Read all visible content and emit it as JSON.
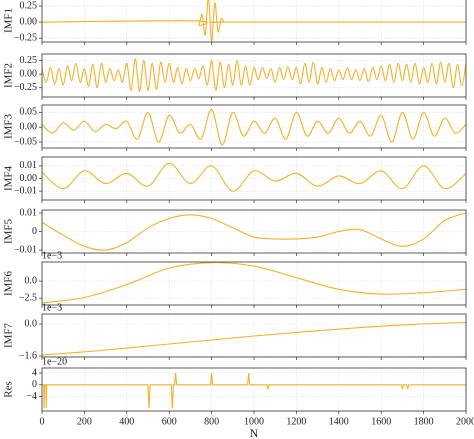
{
  "chart_data": [
    {
      "type": "line",
      "ylabel": "IMF1",
      "color": "#f2b229",
      "grid": true,
      "xlim": [
        0,
        2000
      ],
      "xticks": [
        0,
        200,
        400,
        600,
        800,
        1000,
        1200,
        1400,
        1600,
        1800,
        2000
      ],
      "ylim": [
        -0.31,
        0.36
      ],
      "yticks": [
        0.25,
        {
          "value": 0,
          "label": "0.00"
        },
        {
          "value": -0.25,
          "label": "−0.25"
        }
      ],
      "x": [
        0,
        720,
        740,
        755,
        770,
        785,
        800,
        815,
        830,
        845,
        860,
        880,
        2000
      ],
      "values": [
        0,
        0.02,
        -0.05,
        0.12,
        -0.2,
        0.38,
        -0.3,
        0.3,
        -0.15,
        0.05,
        0,
        0,
        0
      ]
    },
    {
      "type": "line",
      "ylabel": "IMF2",
      "color": "#f2b229",
      "grid": true,
      "xlim": [
        0,
        2000
      ],
      "xticks": [
        0,
        200,
        400,
        600,
        800,
        1000,
        1200,
        1400,
        1600,
        1800,
        2000
      ],
      "ylim": [
        -0.42,
        0.37
      ],
      "yticks": [
        0.25,
        {
          "value": 0,
          "label": "0.00"
        },
        {
          "value": -0.25,
          "label": "−0.25"
        }
      ],
      "x": [
        0,
        20,
        40,
        60,
        80,
        100,
        120,
        140,
        160,
        180,
        200,
        220,
        240,
        260,
        280,
        300,
        320,
        340,
        360,
        380,
        400,
        420,
        440,
        460,
        480,
        500,
        520,
        540,
        560,
        580,
        600,
        620,
        640,
        660,
        680,
        700,
        720,
        740,
        760,
        780,
        800,
        820,
        840,
        860,
        880,
        900,
        920,
        940,
        960,
        980,
        1000,
        1020,
        1040,
        1060,
        1080,
        1100,
        1120,
        1140,
        1160,
        1180,
        1200,
        1220,
        1240,
        1260,
        1280,
        1300,
        1320,
        1340,
        1360,
        1380,
        1400,
        1420,
        1440,
        1460,
        1480,
        1500,
        1520,
        1540,
        1560,
        1580,
        1600,
        1620,
        1640,
        1660,
        1680,
        1700,
        1720,
        1740,
        1760,
        1780,
        1800,
        1820,
        1840,
        1860,
        1880,
        1900,
        1920,
        1940,
        1960,
        1980,
        2000
      ],
      "values": [
        0.1,
        -0.15,
        0.12,
        -0.18,
        0.1,
        -0.2,
        0.15,
        -0.12,
        0.2,
        -0.15,
        0.1,
        -0.22,
        0.18,
        -0.25,
        0.2,
        -0.15,
        0.1,
        -0.12,
        0.08,
        -0.15,
        0.2,
        -0.3,
        0.28,
        -0.32,
        0.25,
        -0.3,
        0.2,
        -0.28,
        0.22,
        -0.15,
        0.2,
        -0.15,
        0.12,
        -0.18,
        0.1,
        -0.12,
        0.1,
        -0.08,
        0.15,
        -0.2,
        0.25,
        -0.3,
        0.22,
        -0.25,
        0.18,
        -0.2,
        0.25,
        -0.2,
        0.15,
        -0.2,
        0.12,
        -0.1,
        0.12,
        -0.08,
        0.1,
        -0.15,
        0.12,
        -0.1,
        0.14,
        -0.1,
        0.12,
        -0.18,
        0.2,
        -0.15,
        0.22,
        -0.18,
        0.12,
        -0.15,
        0.1,
        -0.12,
        0.08,
        -0.1,
        0.12,
        -0.1,
        0.08,
        -0.12,
        0.1,
        -0.14,
        0.12,
        -0.1,
        0.15,
        -0.12,
        0.18,
        -0.15,
        0.2,
        -0.12,
        0.18,
        -0.15,
        0.2,
        -0.18,
        0.12,
        -0.15,
        0.2,
        -0.18,
        0.22,
        -0.15,
        0.2,
        -0.25,
        0.18,
        -0.22,
        0.2
      ]
    },
    {
      "type": "line",
      "ylabel": "IMF3",
      "color": "#f2b229",
      "grid": true,
      "xlim": [
        0,
        2000
      ],
      "xticks": [
        0,
        200,
        400,
        600,
        800,
        1000,
        1200,
        1400,
        1600,
        1800,
        2000
      ],
      "ylim": [
        -0.07,
        0.075
      ],
      "yticks": [
        0.05,
        {
          "value": 0,
          "label": "0.00"
        },
        {
          "value": -0.05,
          "label": "−0.05"
        }
      ],
      "x": [
        0,
        50,
        100,
        150,
        200,
        250,
        300,
        350,
        400,
        450,
        500,
        550,
        600,
        650,
        700,
        750,
        800,
        850,
        900,
        950,
        1000,
        1050,
        1100,
        1150,
        1200,
        1250,
        1300,
        1350,
        1400,
        1450,
        1500,
        1550,
        1600,
        1650,
        1700,
        1750,
        1800,
        1850,
        1900,
        1950,
        2000
      ],
      "values": [
        0.01,
        -0.02,
        0.015,
        -0.01,
        0.02,
        -0.015,
        0.01,
        -0.005,
        0.02,
        -0.04,
        0.05,
        -0.05,
        0.04,
        -0.02,
        0.01,
        -0.04,
        0.06,
        -0.06,
        0.05,
        -0.03,
        0.02,
        -0.02,
        0.03,
        -0.04,
        0.05,
        -0.03,
        0.02,
        -0.02,
        0.03,
        -0.02,
        0.02,
        -0.03,
        0.04,
        -0.05,
        0.05,
        -0.04,
        0.05,
        -0.03,
        0.03,
        -0.02,
        0.01
      ]
    },
    {
      "type": "line",
      "ylabel": "IMF4",
      "color": "#f2b229",
      "grid": true,
      "xlim": [
        0,
        2000
      ],
      "xticks": [
        0,
        200,
        400,
        600,
        800,
        1000,
        1200,
        1400,
        1600,
        1800,
        2000
      ],
      "ylim": [
        -0.017,
        0.017
      ],
      "yticks": [
        0.01,
        {
          "value": 0,
          "label": "0.00"
        },
        {
          "value": -0.01,
          "label": "−0.01"
        }
      ],
      "x": [
        0,
        100,
        200,
        300,
        400,
        500,
        600,
        700,
        800,
        900,
        1000,
        1100,
        1200,
        1300,
        1400,
        1500,
        1600,
        1700,
        1800,
        1900,
        2000
      ],
      "values": [
        0.005,
        -0.008,
        0.006,
        -0.004,
        0.004,
        -0.006,
        0.012,
        -0.004,
        0.01,
        -0.01,
        0.006,
        -0.002,
        0.004,
        -0.006,
        0.002,
        -0.004,
        0.006,
        -0.008,
        0.01,
        -0.008,
        0.004
      ]
    },
    {
      "type": "line",
      "ylabel": "IMF5",
      "color": "#f2b229",
      "grid": true,
      "xlim": [
        0,
        2000
      ],
      "xticks": [
        0,
        200,
        400,
        600,
        800,
        1000,
        1200,
        1400,
        1600,
        1800,
        2000
      ],
      "ylim": [
        -0.0116,
        0.0116
      ],
      "yticks": [
        0.01,
        0,
        {
          "value": -0.01,
          "label": "−0.01"
        }
      ],
      "x": [
        0,
        100,
        200,
        300,
        400,
        500,
        600,
        700,
        800,
        900,
        1000,
        1100,
        1200,
        1300,
        1400,
        1500,
        1600,
        1700,
        1800,
        1900,
        2000
      ],
      "values": [
        0.005,
        -0.002,
        -0.008,
        -0.01,
        -0.006,
        0.002,
        0.007,
        0.009,
        0.007,
        0.002,
        -0.003,
        -0.004,
        -0.004,
        -0.003,
        0.0,
        0.001,
        -0.004,
        -0.008,
        -0.004,
        0.006,
        0.01
      ]
    },
    {
      "type": "line",
      "ylabel": "IMF6",
      "offset_text": "1e−3",
      "color": "#f2b229",
      "grid": true,
      "xlim": [
        0,
        2000
      ],
      "xticks": [
        0,
        200,
        400,
        600,
        800,
        1000,
        1200,
        1400,
        1600,
        1800,
        2000
      ],
      "ylim": [
        -3.5,
        2.8
      ],
      "yticks": [
        {
          "value": 0,
          "label": "0.0"
        },
        {
          "value": -2.5,
          "label": "−2.5"
        }
      ],
      "x": [
        0,
        200,
        400,
        600,
        800,
        1000,
        1200,
        1400,
        1600,
        1800,
        2000
      ],
      "values": [
        -3.2,
        -2.4,
        -0.5,
        1.9,
        2.7,
        2.2,
        0.5,
        -1.2,
        -1.9,
        -1.7,
        -1.2
      ]
    },
    {
      "type": "line",
      "ylabel": "IMF7",
      "offset_text": "1e−3",
      "color": "#f2b229",
      "grid": true,
      "xlim": [
        0,
        2000
      ],
      "xticks": [
        0,
        200,
        400,
        600,
        800,
        1000,
        1200,
        1400,
        1600,
        1800,
        2000
      ],
      "ylim": [
        -1.65,
        0.5
      ],
      "yticks": [
        {
          "value": 0,
          "label": "0.0"
        },
        {
          "value": -1.6,
          "label": "−1.6"
        }
      ],
      "x": [
        0,
        250,
        500,
        750,
        1000,
        1250,
        1500,
        1750,
        2000
      ],
      "values": [
        -1.55,
        -1.35,
        -1.1,
        -0.85,
        -0.6,
        -0.38,
        -0.18,
        -0.02,
        0.08
      ]
    },
    {
      "type": "line",
      "ylabel": "Res",
      "offset_text": "1e−20",
      "xlabel": "N",
      "color": "#f2b229",
      "grid": true,
      "xlim": [
        0,
        2000
      ],
      "xticks": [
        0,
        200,
        400,
        600,
        800,
        1000,
        1200,
        1400,
        1600,
        1800,
        2000
      ],
      "ylim": [
        -8.9,
        5.7
      ],
      "yticks": [
        4,
        0,
        {
          "value": -4,
          "label": "−4"
        }
      ],
      "x": [
        0,
        8,
        10,
        12,
        18,
        20,
        22,
        500,
        505,
        510,
        610,
        615,
        620,
        625,
        630,
        635,
        795,
        800,
        805,
        970,
        975,
        980,
        1060,
        1065,
        1070,
        1695,
        1700,
        1705,
        1720,
        1725,
        1730,
        2000
      ],
      "values": [
        0,
        0,
        -8,
        0,
        0,
        -8,
        0,
        0,
        -8,
        0,
        0,
        -8,
        0,
        0,
        4,
        0,
        0,
        4,
        0,
        0,
        4,
        0,
        0,
        -1.5,
        0,
        0,
        -1.5,
        0,
        0,
        -1.5,
        0,
        0
      ]
    }
  ]
}
